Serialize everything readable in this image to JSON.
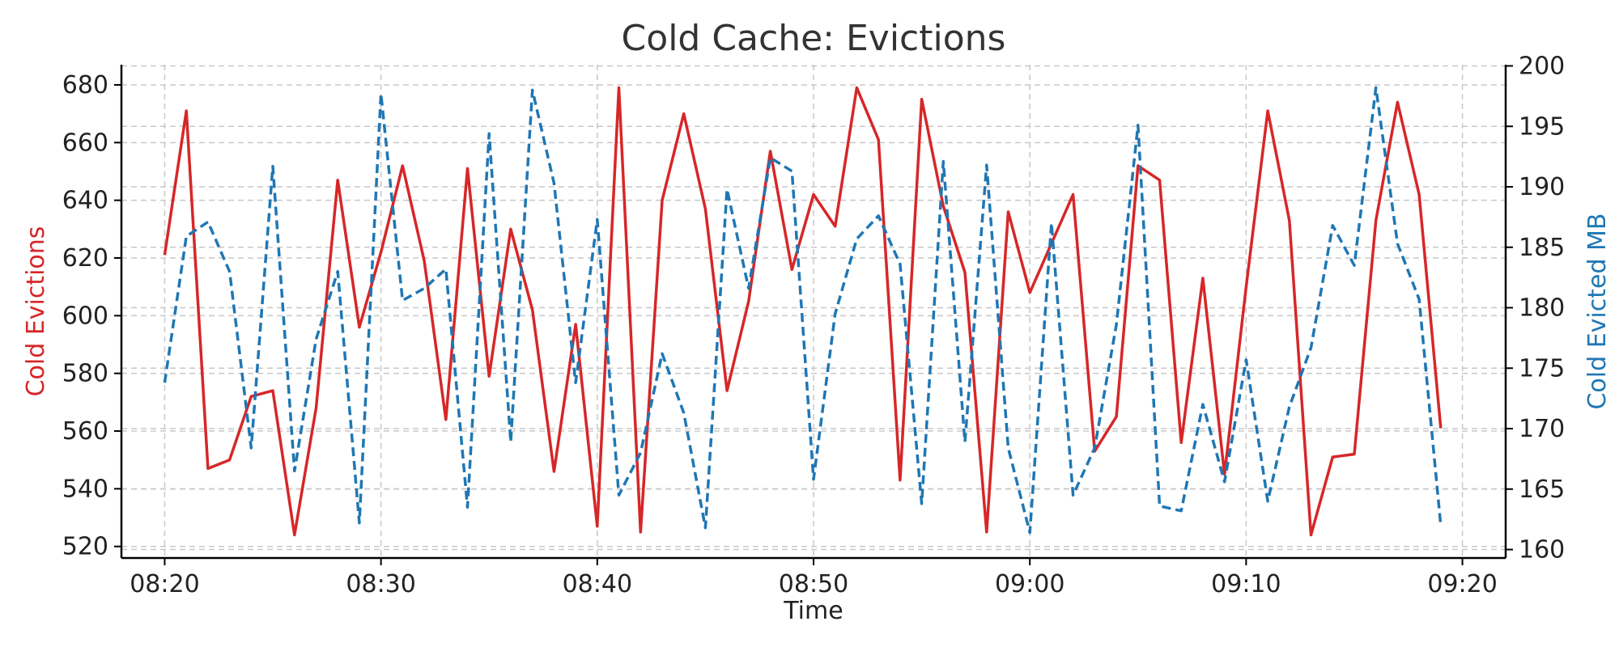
{
  "chart_data": {
    "type": "line",
    "title": "Cold Cache: Evictions",
    "xlabel": "Time",
    "x": [
      "08:20",
      "08:21",
      "08:22",
      "08:23",
      "08:24",
      "08:25",
      "08:26",
      "08:27",
      "08:28",
      "08:29",
      "08:30",
      "08:31",
      "08:32",
      "08:33",
      "08:34",
      "08:35",
      "08:36",
      "08:37",
      "08:38",
      "08:39",
      "08:40",
      "08:41",
      "08:42",
      "08:43",
      "08:44",
      "08:45",
      "08:46",
      "08:47",
      "08:48",
      "08:49",
      "08:50",
      "08:51",
      "08:52",
      "08:53",
      "08:54",
      "08:55",
      "08:56",
      "08:57",
      "08:58",
      "08:59",
      "09:00",
      "09:01",
      "09:02",
      "09:03",
      "09:04",
      "09:05",
      "09:06",
      "09:07",
      "09:08",
      "09:09",
      "09:10",
      "09:11",
      "09:12",
      "09:13",
      "09:14",
      "09:15",
      "09:16",
      "09:17",
      "09:18",
      "09:19"
    ],
    "xlim": [
      "08:18",
      "09:22"
    ],
    "xticks": [
      "08:20",
      "08:30",
      "08:40",
      "08:50",
      "09:00",
      "09:10",
      "09:20"
    ],
    "y_left": {
      "label": "Cold Evictions",
      "color": "#d62728",
      "lim": [
        516,
        687
      ],
      "ticks": [
        520,
        540,
        560,
        580,
        600,
        620,
        640,
        660,
        680
      ]
    },
    "y_right": {
      "label": "Cold Evicted MB",
      "color": "#1f77b4",
      "lim": [
        159.3,
        200.1
      ],
      "ticks": [
        160,
        165,
        170,
        175,
        180,
        185,
        190,
        195,
        200
      ]
    },
    "grid": true,
    "series": [
      {
        "axis": "left",
        "color": "#d62728",
        "style": "solid",
        "values": [
          621,
          671,
          547,
          550,
          572,
          574,
          524,
          568,
          647,
          596,
          622,
          652,
          619,
          564,
          651,
          579,
          630,
          602,
          546,
          597,
          527,
          679,
          525,
          640,
          670,
          637,
          574,
          605,
          657,
          616,
          642,
          631,
          679,
          661,
          543,
          675,
          638,
          615,
          525,
          636,
          608,
          625,
          642,
          553,
          565,
          652,
          647,
          556,
          613,
          545,
          610,
          671,
          633,
          524,
          551,
          552,
          633,
          674,
          642,
          561
        ]
      },
      {
        "axis": "right",
        "color": "#1f77b4",
        "style": "dashed",
        "values": [
          173.8,
          185.9,
          187.1,
          183.0,
          168.4,
          191.7,
          166.5,
          177.4,
          183.0,
          162.2,
          197.7,
          180.6,
          181.6,
          183.2,
          163.5,
          194.4,
          168.9,
          198.0,
          190.3,
          173.8,
          187.3,
          164.5,
          168.0,
          176.2,
          171.3,
          161.8,
          189.8,
          181.6,
          192.4,
          191.3,
          165.8,
          179.5,
          185.7,
          187.6,
          183.6,
          163.8,
          192.1,
          168.9,
          191.8,
          168.4,
          161.4,
          187.0,
          164.5,
          168.4,
          178.6,
          195.1,
          163.6,
          163.2,
          172.0,
          165.6,
          175.7,
          164.0,
          171.8,
          176.7,
          186.8,
          183.5,
          198.2,
          185.3,
          180.7,
          162.0
        ]
      }
    ]
  }
}
